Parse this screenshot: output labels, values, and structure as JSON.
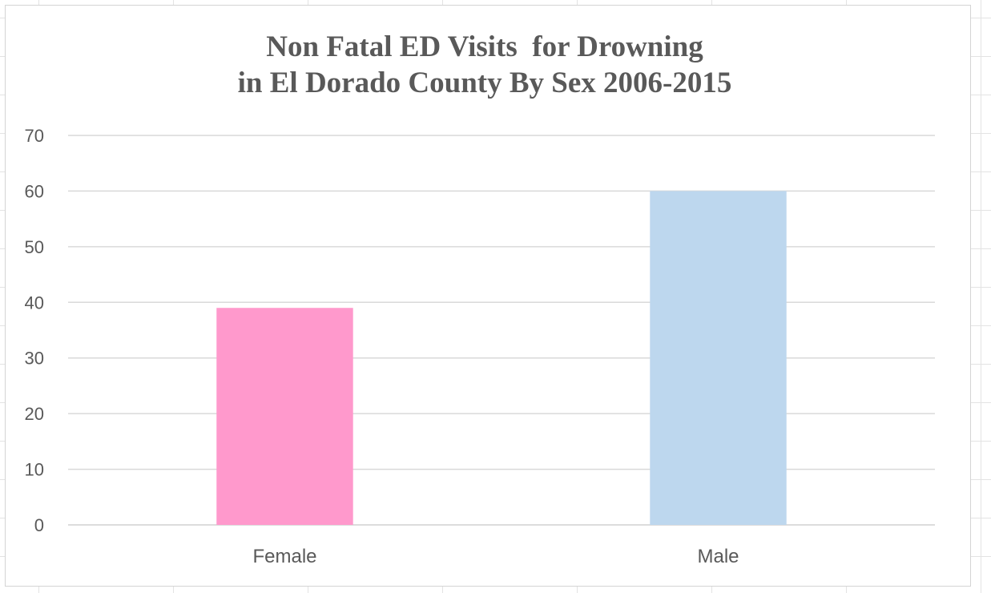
{
  "chart_data": {
    "type": "bar",
    "title_line1": "Non Fatal ED Visits  for Drowning",
    "title_line2": "in El Dorado County By Sex 2006-2015",
    "categories": [
      "Female",
      "Male"
    ],
    "values": [
      39,
      60
    ],
    "bar_colors": [
      "#ff99cc",
      "#bdd7ee"
    ],
    "ylim": [
      0,
      70
    ],
    "yticks": [
      0,
      10,
      20,
      30,
      40,
      50,
      60,
      70
    ],
    "xlabel": "",
    "ylabel": "",
    "grid": true,
    "legend": "none"
  }
}
